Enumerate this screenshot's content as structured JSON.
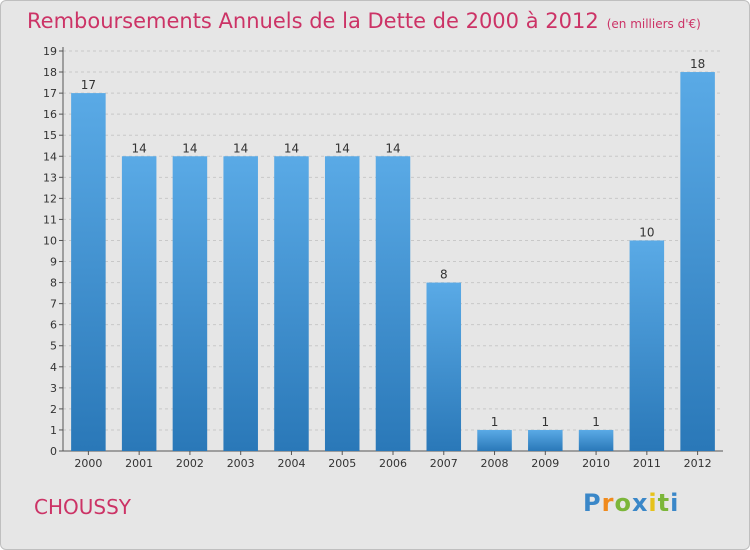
{
  "title": "Remboursements Annuels de la Dette de 2000 à 2012",
  "unit": "(en milliers d'€)",
  "location": "CHOUSSY",
  "logo": {
    "letters": [
      {
        "char": "P",
        "color": "#3a87c8"
      },
      {
        "char": "r",
        "color": "#f08a1c"
      },
      {
        "char": "o",
        "color": "#7cb63a"
      },
      {
        "char": "x",
        "color": "#3a87c8"
      },
      {
        "char": "i",
        "color": "#e6c21a"
      },
      {
        "char": "t",
        "color": "#7cb63a"
      },
      {
        "char": "i",
        "color": "#3a87c8"
      }
    ]
  },
  "colors": {
    "bar_light": "#5aaae6",
    "bar_dark": "#2a78b8",
    "title": "#cc3366",
    "grid": "#c8c8c8",
    "plot_bg": "#e6e6e6"
  },
  "chart_data": {
    "type": "bar",
    "categories": [
      "2000",
      "2001",
      "2002",
      "2003",
      "2004",
      "2005",
      "2006",
      "2007",
      "2008",
      "2009",
      "2010",
      "2011",
      "2012"
    ],
    "values": [
      17,
      14,
      14,
      14,
      14,
      14,
      14,
      8,
      1,
      1,
      1,
      10,
      18
    ],
    "y_ticks": [
      "0",
      "1",
      "2",
      "3",
      "4",
      "5",
      "6",
      "7",
      "8",
      "9",
      "10",
      "11",
      "12",
      "13",
      "14",
      "15",
      "16",
      "17",
      "18",
      "19"
    ],
    "ylim": [
      0,
      19
    ],
    "grid": "horizontal dashed"
  }
}
